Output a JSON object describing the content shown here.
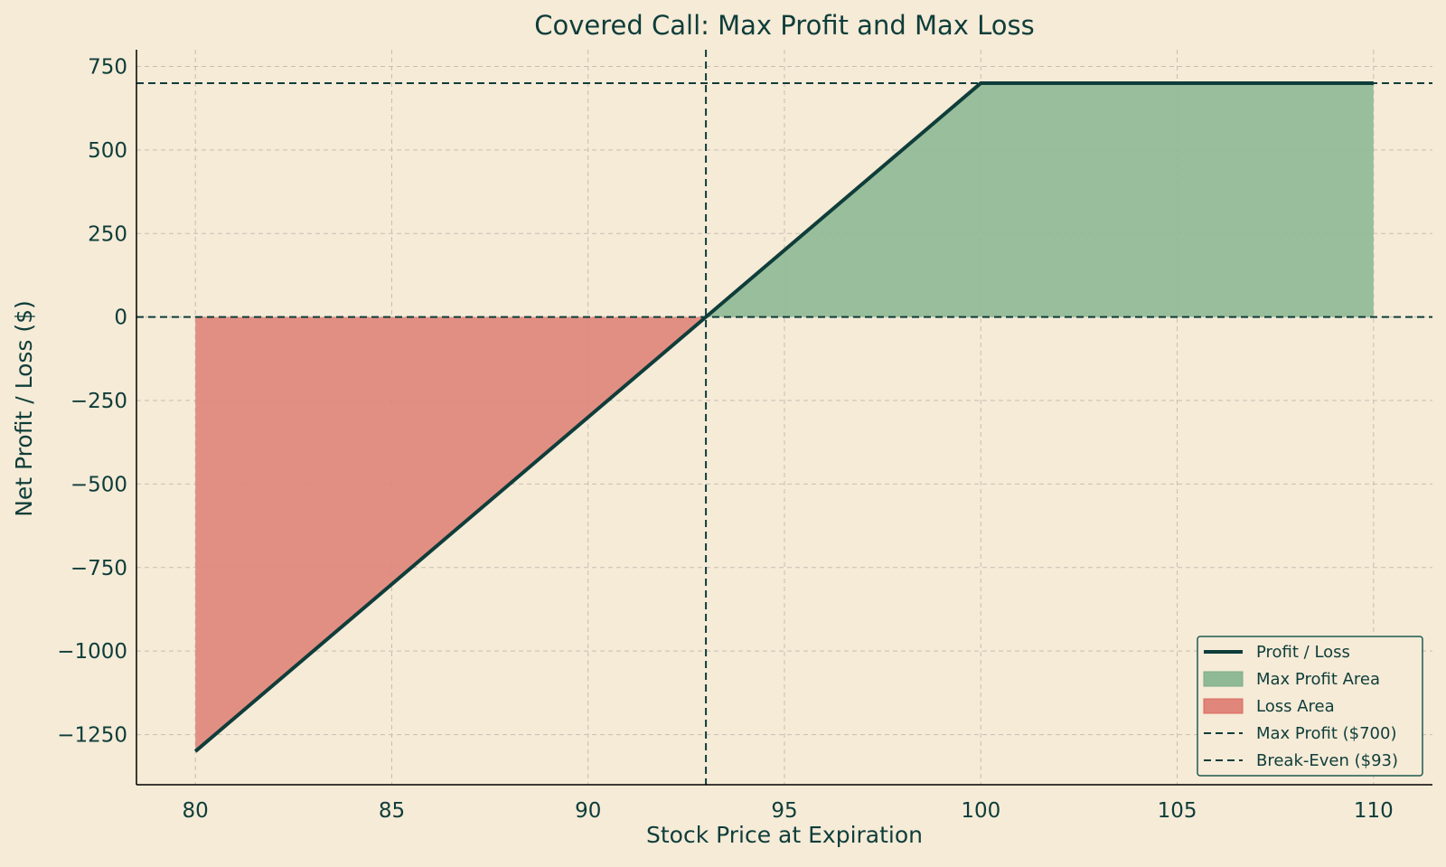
{
  "chart_data": {
    "type": "line",
    "title": "Covered Call: Max Profit and Max Loss",
    "xlabel": "Stock Price at Expiration",
    "ylabel": "Net Profit / Loss ($)",
    "xlim": [
      78.5,
      111.5
    ],
    "ylim": [
      -1400,
      800
    ],
    "xticks": [
      80,
      85,
      90,
      95,
      100,
      105,
      110
    ],
    "yticks": [
      750,
      500,
      250,
      0,
      -250,
      -500,
      -750,
      -1000,
      -1250
    ],
    "xtick_labels": [
      "80",
      "85",
      "90",
      "95",
      "100",
      "105",
      "110"
    ],
    "ytick_labels": [
      "750",
      "500",
      "250",
      "0",
      "−250",
      "−500",
      "−750",
      "−1000",
      "−1250"
    ],
    "grid": true,
    "legend_position": "lower-right",
    "series": [
      {
        "name": "Profit / Loss",
        "x": [
          80,
          93,
          100,
          110
        ],
        "y": [
          -1300,
          0,
          700,
          700
        ],
        "color": "#0F3D3A"
      }
    ],
    "areas": [
      {
        "name": "Max Profit Area",
        "color": "#8FB995",
        "x_from": 93,
        "x_to": 110
      },
      {
        "name": "Loss Area",
        "color": "#E0857A",
        "x_from": 80,
        "x_to": 93
      }
    ],
    "reference_lines": [
      {
        "name": "Max Profit ($700)",
        "orientation": "horizontal",
        "value": 700,
        "style": "dashed"
      },
      {
        "name": "Break-Even ($93)",
        "orientation": "vertical",
        "value": 93,
        "style": "dashed"
      },
      {
        "orientation": "horizontal",
        "value": 0,
        "style": "dashed"
      }
    ],
    "legend": [
      "Profit / Loss",
      "Max Profit Area",
      "Loss Area",
      "Max Profit ($700)",
      "Break-Even ($93)"
    ],
    "colors": {
      "background": "#F5EBD7",
      "line": "#0F3D3A",
      "profit_fill": "#8FB995",
      "loss_fill": "#E0857A",
      "grid": "#C9BEB1"
    }
  }
}
